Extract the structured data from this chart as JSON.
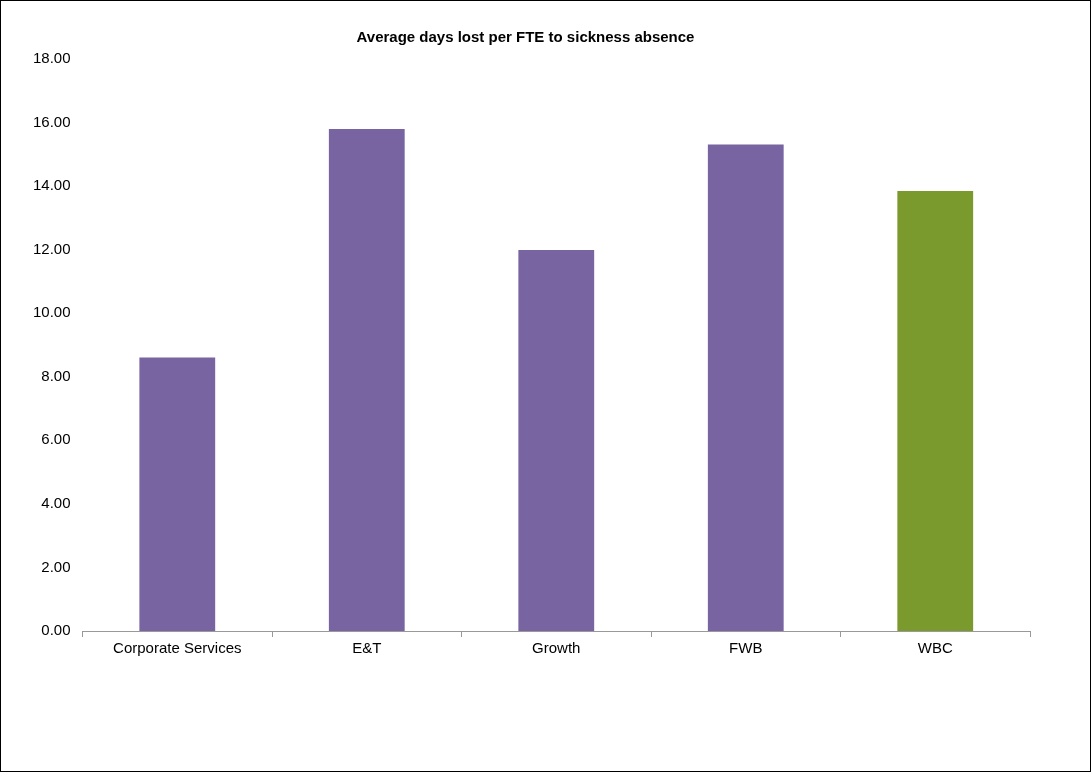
{
  "chart_data": {
    "type": "bar",
    "title": "Average days lost per FTE to sickness absence",
    "categories": [
      "Corporate Services",
      "E&T",
      "Growth",
      "FWB",
      "WBC"
    ],
    "values": [
      8.61,
      15.8,
      11.99,
      15.31,
      13.85
    ],
    "colors": [
      "#7864a0",
      "#7864a0",
      "#7864a0",
      "#7864a0",
      "#7a9a2e"
    ],
    "ylim": [
      0,
      18
    ],
    "yticks": [
      {
        "value": 0,
        "label": "0.00"
      },
      {
        "value": 2,
        "label": "2.00"
      },
      {
        "value": 4,
        "label": "4.00"
      },
      {
        "value": 6,
        "label": "6.00"
      },
      {
        "value": 8,
        "label": "8.00"
      },
      {
        "value": 10,
        "label": "10.00"
      },
      {
        "value": 12,
        "label": "12.00"
      },
      {
        "value": 14,
        "label": "14.00"
      },
      {
        "value": 16,
        "label": "16.00"
      },
      {
        "value": 18,
        "label": "18.00"
      }
    ],
    "grid": false,
    "legend": false
  }
}
